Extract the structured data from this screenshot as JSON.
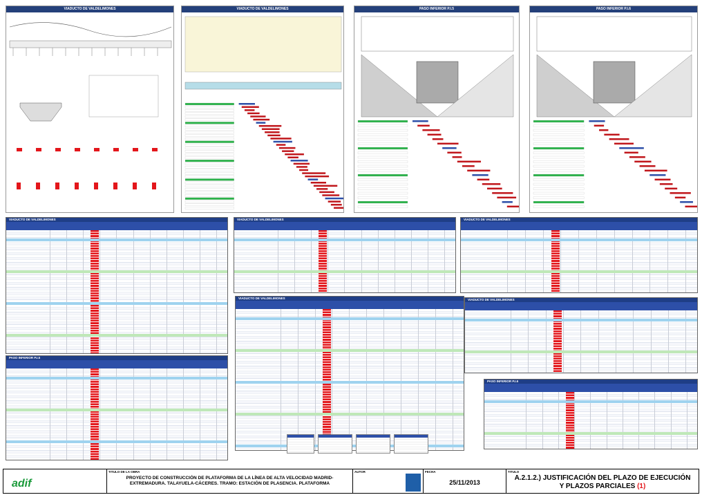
{
  "panels": [
    {
      "title": "VIADUCTO DE VALDELIMONES"
    },
    {
      "title": "VIADUCTO DE VALDELIMONES"
    },
    {
      "title": "PASO INFERIOR P.I.5"
    },
    {
      "title": "PASO INFERIOR P.I.6"
    }
  ],
  "tables": [
    {
      "title": "VIADUCTO DE VALDELIMONES"
    },
    {
      "title": "VIADUCTO DE VALDELIMONES"
    },
    {
      "title": "VIADUCTO DE VALDELIMONES"
    },
    {
      "title": "VIADUCTO DE VALDELIMONES"
    },
    {
      "title": "VIADUCTO DE VALDELIMONES"
    },
    {
      "title": "PASO INFERIOR P.I.5"
    },
    {
      "title": "PASO INFERIOR P.I.6"
    }
  ],
  "title_block": {
    "logo": "adif",
    "work_label": "TITULO DE LA OBRA",
    "work_title": "PROYECTO DE CONSTRUCCIÓN DE PLATAFORMA DE LA LÍNEA DE ALTA VELOCIDAD MADRID-EXTREMADURA. TALAYUELA-CÁCERES. TRAMO: ESTACIÓN DE PLASENCIA. PLATAFORMA",
    "author_label": "AUTOR",
    "date_label": "FECHA",
    "date": "25/11/2013",
    "title_label": "TITULO",
    "title": "A.2.1.2.) JUSTIFICACIÓN DEL PLAZO DE EJECUCIÓN Y PLAZOS PARCIALES",
    "title_note": "(1)"
  }
}
